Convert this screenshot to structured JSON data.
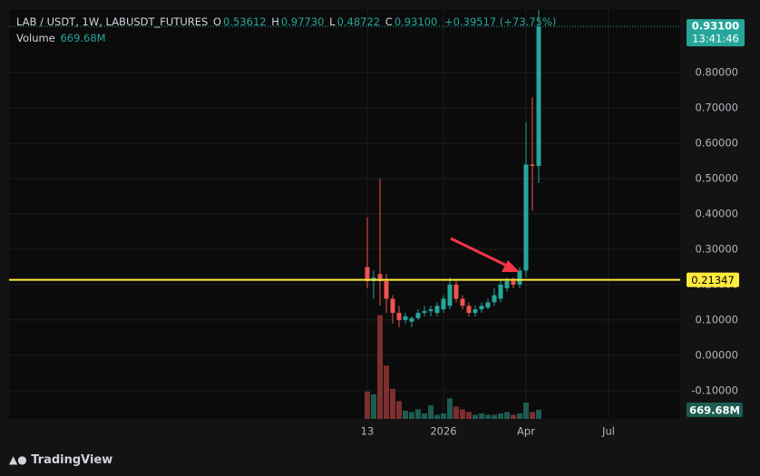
{
  "header": {
    "symbol": "LAB / USDT, 1W, LABUSDT_FUTURES",
    "ohlc": [
      {
        "key": "O",
        "value": "0.53612"
      },
      {
        "key": "H",
        "value": "0.97730"
      },
      {
        "key": "L",
        "value": "0.48722"
      },
      {
        "key": "C",
        "value": "0.93100"
      }
    ],
    "change": "+0.39517 (+73.75%)",
    "volume_label": "Volume",
    "volume_value": "669.68M"
  },
  "chart_data": {
    "type": "candlestick",
    "categories": [
      "13",
      null,
      null,
      null,
      null,
      null,
      null,
      null,
      null,
      null,
      null,
      null,
      "2026",
      null,
      null,
      null,
      null,
      null,
      null,
      null,
      null,
      null,
      null,
      null,
      null,
      "Apr",
      null,
      null,
      null,
      null,
      null,
      null,
      null,
      null,
      null,
      null,
      null,
      null,
      "Jul",
      null
    ],
    "open": [
      0.25,
      0.21,
      0.23,
      0.21,
      0.16,
      0.12,
      0.1,
      0.095,
      0.105,
      0.12,
      0.125,
      0.12,
      0.13,
      0.14,
      0.2,
      0.16,
      0.14,
      0.12,
      0.13,
      0.135,
      0.15,
      0.16,
      0.19,
      0.21,
      0.2,
      0.24,
      0.54,
      0.53612,
      null,
      null,
      null,
      null,
      null,
      null,
      null,
      null,
      null,
      null,
      null,
      null
    ],
    "high": [
      0.39,
      0.24,
      0.5,
      0.23,
      0.17,
      0.14,
      0.12,
      0.11,
      0.13,
      0.14,
      0.14,
      0.15,
      0.17,
      0.22,
      0.21,
      0.17,
      0.15,
      0.14,
      0.15,
      0.16,
      0.19,
      0.21,
      0.22,
      0.22,
      0.25,
      0.66,
      0.73,
      0.9773,
      null,
      null,
      null,
      null,
      null,
      null,
      null,
      null,
      null,
      null,
      null,
      null
    ],
    "low": [
      0.19,
      0.16,
      0.14,
      0.12,
      0.09,
      0.08,
      0.09,
      0.08,
      0.1,
      0.11,
      0.11,
      0.11,
      0.12,
      0.13,
      0.15,
      0.13,
      0.11,
      0.11,
      0.12,
      0.13,
      0.14,
      0.15,
      0.18,
      0.19,
      0.19,
      0.22,
      0.41,
      0.48722,
      null,
      null,
      null,
      null,
      null,
      null,
      null,
      null,
      null,
      null,
      null,
      null
    ],
    "close": [
      0.21,
      0.22,
      0.21,
      0.16,
      0.12,
      0.1,
      0.11,
      0.105,
      0.12,
      0.125,
      0.13,
      0.14,
      0.16,
      0.2,
      0.16,
      0.14,
      0.12,
      0.13,
      0.14,
      0.15,
      0.17,
      0.2,
      0.21,
      0.2,
      0.24,
      0.54,
      0.536,
      0.931,
      null,
      null,
      null,
      null,
      null,
      null,
      null,
      null,
      null,
      null,
      null,
      null
    ],
    "volume": [
      2000,
      1800,
      7600,
      3900,
      2200,
      1300,
      600,
      500,
      700,
      400,
      1000,
      300,
      400,
      1500,
      900,
      700,
      500,
      300,
      400,
      300,
      300,
      400,
      500,
      300,
      400,
      1200,
      500,
      669.68,
      null,
      null,
      null,
      null,
      null,
      null,
      null,
      null,
      null,
      null,
      null,
      null
    ],
    "volume_lim": [
      0,
      30000
    ],
    "up_color": "#26a69a",
    "down_color": "#ef5350",
    "up_volume_color": "#1d5c52",
    "down_volume_color": "#7d2e2e",
    "ylim": [
      -0.18,
      0.98
    ],
    "yticks": [
      {
        "value": -0.1,
        "label": "-0.10000"
      },
      {
        "value": 0,
        "label": "0.00000"
      },
      {
        "value": 0.1,
        "label": "0.10000"
      },
      {
        "value": 0.2,
        "label": "0.20000"
      },
      {
        "value": 0.3,
        "label": "0.30000"
      },
      {
        "value": 0.4,
        "label": "0.40000"
      },
      {
        "value": 0.5,
        "label": "0.50000"
      },
      {
        "value": 0.6,
        "label": "0.60000"
      },
      {
        "value": 0.7,
        "label": "0.70000"
      },
      {
        "value": 0.8,
        "label": "0.80000"
      }
    ],
    "grid": true,
    "horizontal_line": {
      "value": 0.21347,
      "label": "0.21347",
      "color": "#ffeb3b"
    },
    "last_price": {
      "value": 0.931,
      "label": "0.93100",
      "countdown": "13:41:46"
    },
    "last_volume_label": "669.68M"
  },
  "footer": {
    "brand": "TradingView"
  }
}
